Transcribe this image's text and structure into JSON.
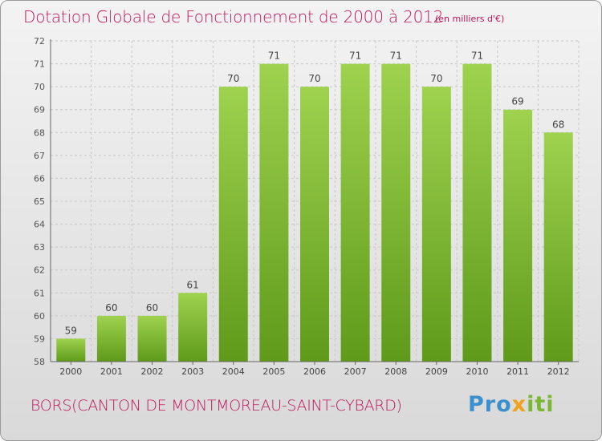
{
  "title": "Dotation Globale de Fonctionnement de 2000 à 2012",
  "unit_note": "(en milliers d'€)",
  "footer_label": "BORS(CANTON DE MONTMOREAU-SAINT-CYBARD)",
  "brand": {
    "part1": "Pro",
    "part2": "x",
    "part3": "iti"
  },
  "colors": {
    "title": "#c0155a",
    "bar_top": "#9ed24f",
    "bar_bottom": "#5f9a1a",
    "grid": "#c8c8c8",
    "brand_blue": "#3a8fcf",
    "brand_orange": "#f2a21a",
    "brand_green": "#7ab733"
  },
  "chart_data": {
    "type": "bar",
    "title": "Dotation Globale de Fonctionnement de 2000 à 2012",
    "categories": [
      "2000",
      "2001",
      "2002",
      "2003",
      "2004",
      "2005",
      "2006",
      "2007",
      "2008",
      "2009",
      "2010",
      "2011",
      "2012"
    ],
    "values": [
      59,
      60,
      60,
      61,
      70,
      71,
      70,
      71,
      71,
      70,
      71,
      69,
      68
    ],
    "ylim": [
      58,
      72
    ],
    "yticks": [
      58,
      59,
      60,
      61,
      62,
      63,
      64,
      65,
      66,
      67,
      68,
      69,
      70,
      71,
      72
    ],
    "grid": true,
    "data_labels": true,
    "xlabel": "",
    "ylabel": ""
  }
}
